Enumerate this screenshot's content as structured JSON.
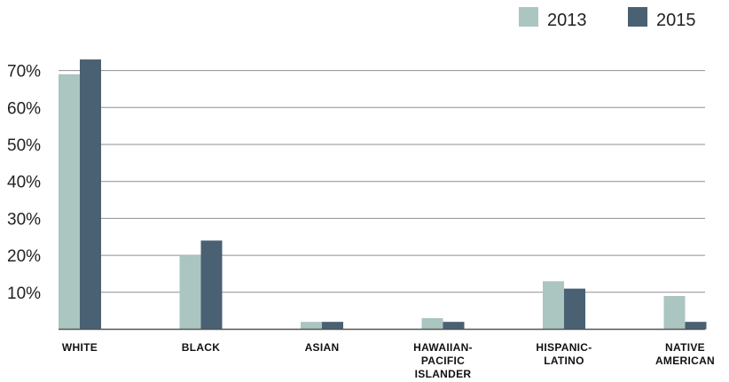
{
  "chart_data": {
    "type": "bar",
    "categories": [
      [
        "WHITE"
      ],
      [
        "BLACK"
      ],
      [
        "ASIAN"
      ],
      [
        "HAWAIIAN-",
        "PACIFIC",
        "ISLANDER"
      ],
      [
        "HISPANIC-",
        "LATINO"
      ],
      [
        "NATIVE",
        "AMERICAN"
      ]
    ],
    "series": [
      {
        "name": "2013",
        "color": "#abc5c0",
        "values": [
          69,
          20,
          2,
          3,
          13,
          9
        ]
      },
      {
        "name": "2015",
        "color": "#4a6073",
        "values": [
          73,
          24,
          2,
          2,
          11,
          2
        ]
      }
    ],
    "y_ticks": [
      "10%",
      "20%",
      "30%",
      "40%",
      "50%",
      "60%",
      "70%"
    ],
    "y_tick_values": [
      10,
      20,
      30,
      40,
      50,
      60,
      70
    ],
    "ylim": [
      0,
      70
    ],
    "grid": true,
    "legend": "top-right",
    "title": "",
    "xlabel": "",
    "ylabel": ""
  }
}
